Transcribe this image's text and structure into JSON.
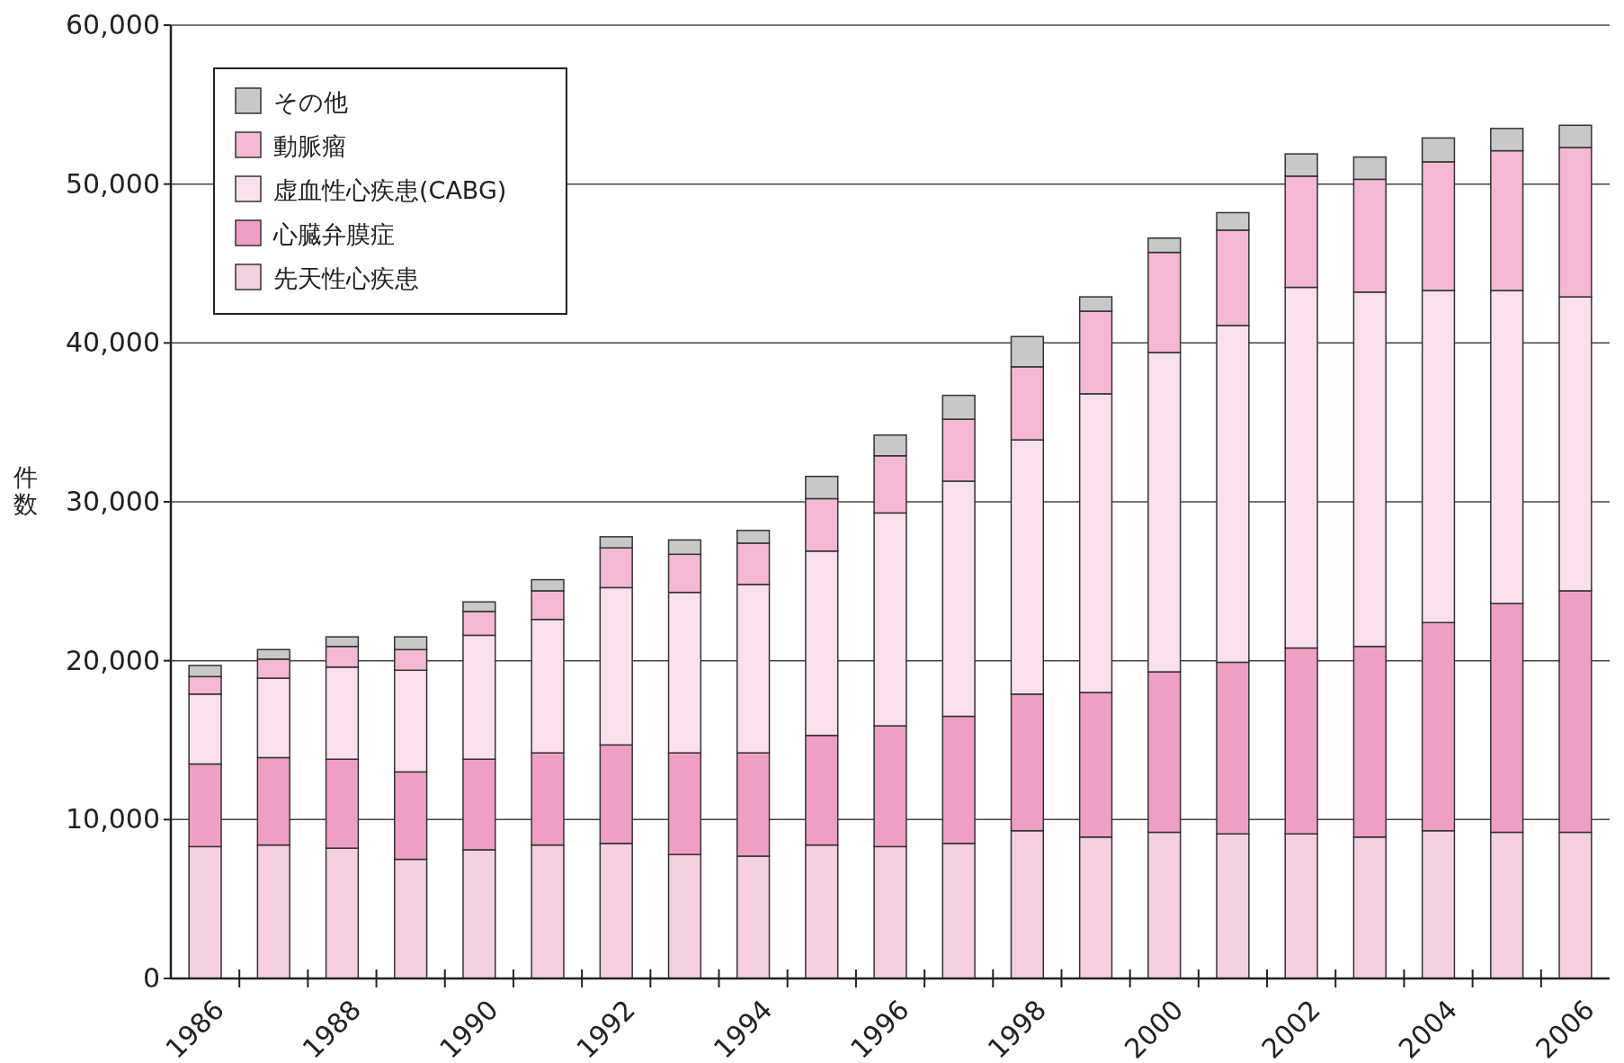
{
  "chart_data": {
    "type": "bar",
    "stacked": true,
    "ylabel": "件数",
    "categories": [
      "1986",
      null,
      "1988",
      null,
      "1990",
      null,
      "1992",
      null,
      "1994",
      null,
      "1996",
      null,
      "1998",
      null,
      "2000",
      null,
      "2002",
      null,
      "2004",
      null,
      "2006"
    ],
    "series": [
      {
        "name": "先天性心疾患",
        "color": "#f6cfe1",
        "values": [
          8300,
          8400,
          8200,
          7500,
          8100,
          8400,
          8500,
          7800,
          7700,
          8400,
          8300,
          8500,
          9300,
          8900,
          9200,
          9100,
          9100,
          8900,
          9300,
          9200,
          9200
        ]
      },
      {
        "name": "心臓弁膜症",
        "color": "#ef9fc6",
        "values": [
          5200,
          5500,
          5600,
          5500,
          5700,
          5800,
          6200,
          6400,
          6500,
          6900,
          7600,
          8000,
          8600,
          9100,
          10100,
          10800,
          11700,
          12000,
          13100,
          14400,
          15200
        ]
      },
      {
        "name": "虚血性心疾患(CABG)",
        "color": "#f9e0ec",
        "values": [
          4400,
          5000,
          5800,
          6400,
          7800,
          8400,
          9900,
          10100,
          10600,
          11600,
          13400,
          14800,
          16000,
          18800,
          20100,
          21200,
          22700,
          22300,
          20900,
          19700,
          18500
        ]
      },
      {
        "name": "動脈瘤",
        "color": "#f4b8d4",
        "values": [
          1100,
          1200,
          1300,
          1300,
          1500,
          1800,
          2500,
          2400,
          2600,
          3300,
          3600,
          3900,
          4600,
          5200,
          6300,
          6000,
          7000,
          7100,
          8100,
          8800,
          9400
        ]
      },
      {
        "name": "その他",
        "color": "#c8c8c8",
        "values": [
          700,
          600,
          600,
          800,
          600,
          700,
          700,
          900,
          800,
          1400,
          1300,
          1500,
          1900,
          900,
          900,
          1100,
          1400,
          1400,
          1500,
          1400,
          1400
        ]
      }
    ],
    "ylim": [
      0,
      60000
    ],
    "yticks": [
      {
        "value": 0,
        "label": "0"
      },
      {
        "value": 10000,
        "label": "10,000"
      },
      {
        "value": 20000,
        "label": "20,000"
      },
      {
        "value": 30000,
        "label": "30,000"
      },
      {
        "value": 40000,
        "label": "40,000"
      },
      {
        "value": 50000,
        "label": "50,000"
      },
      {
        "value": 60000,
        "label": "60,000"
      }
    ],
    "grid": "y",
    "legend": "top left"
  }
}
